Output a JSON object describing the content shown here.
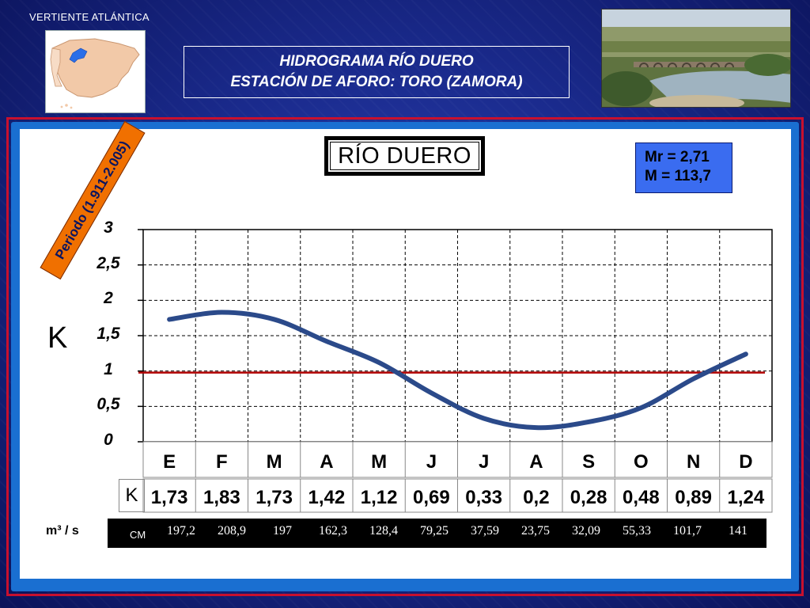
{
  "header": {
    "vertiente": "VERTIENTE ATLÁNTICA",
    "title_line1": "HIDROGRAMA RÍO DUERO",
    "title_line2": "ESTACIÓN DE AFORO: TORO (ZAMORA)"
  },
  "box_title": "RÍO DUERO",
  "stats": {
    "mr": "Mr = 2,71",
    "m": "M = 113,7"
  },
  "periodo": "Periodo (1.911-2.005)",
  "y_axis_letter": "K",
  "k_row_label": "K",
  "flow_unit_label": "m³ / s",
  "cm_label": "CM",
  "colors": {
    "background": "#1a2a8c",
    "frame": "#c8102e",
    "line": "#2b4a8a",
    "reference_line": "#b00000",
    "stats_box": "#3a6cf0",
    "periodo_box": "#f07000"
  },
  "chart_data": {
    "type": "line",
    "categories": [
      "E",
      "F",
      "M",
      "A",
      "M",
      "J",
      "J",
      "A",
      "S",
      "O",
      "N",
      "D"
    ],
    "series": [
      {
        "values": [
          1.73,
          1.83,
          1.73,
          1.42,
          1.12,
          0.69,
          0.33,
          0.2,
          0.28,
          0.48,
          0.89,
          1.24
        ]
      }
    ],
    "value_labels": [
      "1,73",
      "1,83",
      "1,73",
      "1,42",
      "1,12",
      "0,69",
      "0,33",
      "0,2",
      "0,28",
      "0,48",
      "0,89",
      "1,24"
    ],
    "reference_line": 1,
    "ylim": [
      0,
      3
    ],
    "yticks": [
      "0",
      "0,5",
      "1",
      "1,5",
      "2",
      "2,5",
      "3"
    ],
    "ylabel": "K",
    "grid": true,
    "caudal_m3s": [
      "197,2",
      "208,9",
      "197",
      "162,3",
      "128,4",
      "79,25",
      "37,59",
      "23,75",
      "32,09",
      "55,33",
      "101,7",
      "141"
    ]
  }
}
